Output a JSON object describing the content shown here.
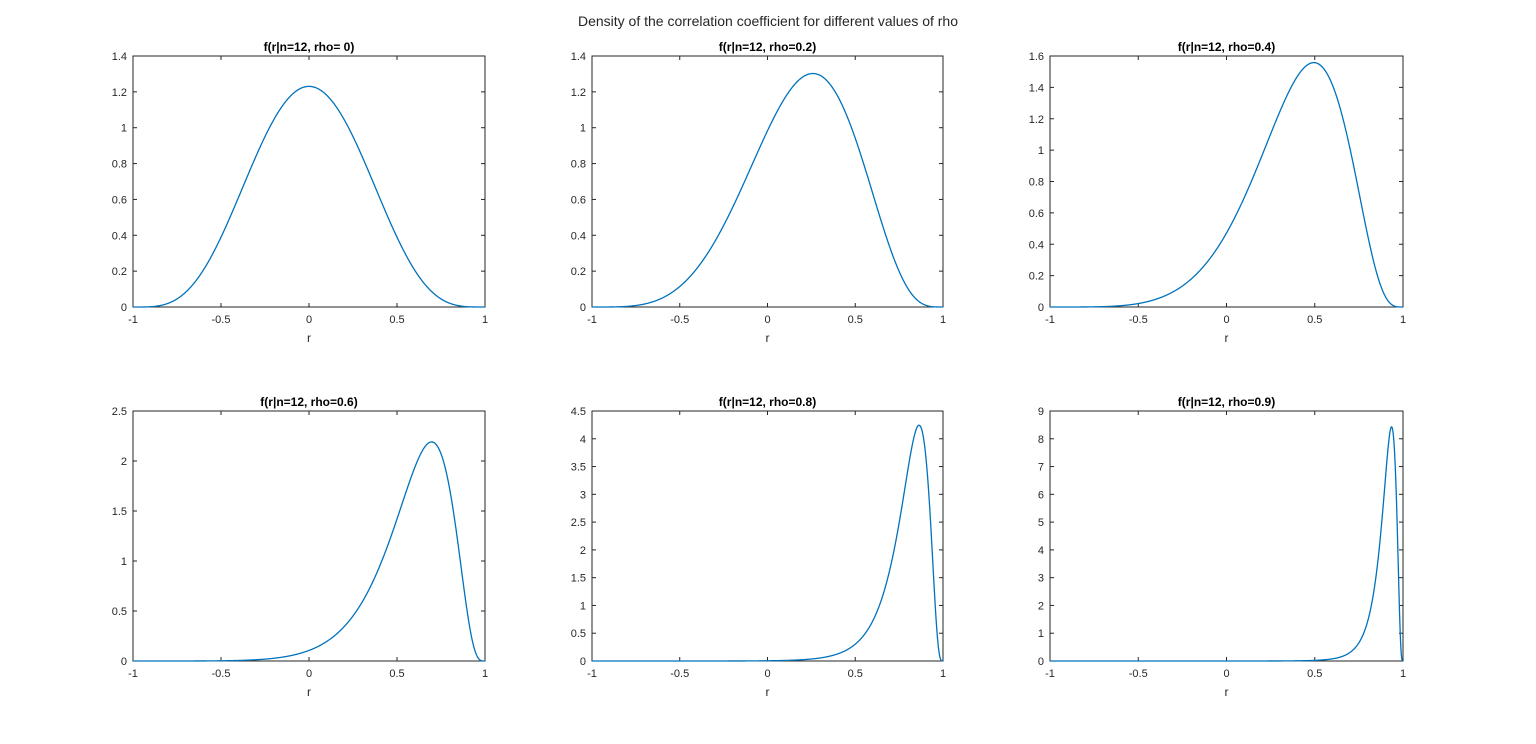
{
  "figure_title": "Density of the correlation coefficient for different values of rho",
  "colors": {
    "curve": "#0072BD",
    "axes": "#262626",
    "background": "#ffffff"
  },
  "chart_data": [
    {
      "type": "line",
      "title": "f(r|n=12, rho=  0)",
      "xlabel": "r",
      "ylabel": "",
      "n": 12,
      "rho": 0,
      "xlim": [
        -1,
        1
      ],
      "ylim": [
        0,
        1.4
      ],
      "xticks": [
        "-1",
        "-0.5",
        "0",
        "0.5",
        "1"
      ],
      "yticks": [
        "0",
        "0.2",
        "0.4",
        "0.6",
        "0.8",
        "1",
        "1.2",
        "1.4"
      ],
      "peak": {
        "x": 0,
        "y": 1.23
      },
      "grid": false
    },
    {
      "type": "line",
      "title": "f(r|n=12, rho=0.2)",
      "xlabel": "r",
      "ylabel": "",
      "n": 12,
      "rho": 0.2,
      "xlim": [
        -1,
        1
      ],
      "ylim": [
        0,
        1.4
      ],
      "xticks": [
        "-1",
        "-0.5",
        "0",
        "0.5",
        "1"
      ],
      "yticks": [
        "0",
        "0.2",
        "0.4",
        "0.6",
        "0.8",
        "1",
        "1.2",
        "1.4"
      ],
      "peak": {
        "x": 0.25,
        "y": 1.3
      },
      "grid": false
    },
    {
      "type": "line",
      "title": "f(r|n=12, rho=0.4)",
      "xlabel": "r",
      "ylabel": "",
      "n": 12,
      "rho": 0.4,
      "xlim": [
        -1,
        1
      ],
      "ylim": [
        0,
        1.6
      ],
      "xticks": [
        "-1",
        "-0.5",
        "0",
        "0.5",
        "1"
      ],
      "yticks": [
        "0",
        "0.2",
        "0.4",
        "0.6",
        "0.8",
        "1",
        "1.2",
        "1.4",
        "1.6"
      ],
      "peak": {
        "x": 0.49,
        "y": 1.56
      },
      "grid": false
    },
    {
      "type": "line",
      "title": "f(r|n=12, rho=0.6)",
      "xlabel": "r",
      "ylabel": "",
      "n": 12,
      "rho": 0.6,
      "xlim": [
        -1,
        1
      ],
      "ylim": [
        0,
        2.5
      ],
      "xticks": [
        "-1",
        "-0.5",
        "0",
        "0.5",
        "1"
      ],
      "yticks": [
        "0",
        "0.5",
        "1",
        "1.5",
        "2",
        "2.5"
      ],
      "peak": {
        "x": 0.7,
        "y": 2.19
      },
      "grid": false
    },
    {
      "type": "line",
      "title": "f(r|n=12, rho=0.8)",
      "xlabel": "r",
      "ylabel": "",
      "n": 12,
      "rho": 0.8,
      "xlim": [
        -1,
        1
      ],
      "ylim": [
        0,
        4.5
      ],
      "xticks": [
        "-1",
        "-0.5",
        "0",
        "0.5",
        "1"
      ],
      "yticks": [
        "0",
        "0.5",
        "1",
        "1.5",
        "2",
        "2.5",
        "3",
        "3.5",
        "4",
        "4.5"
      ],
      "peak": {
        "x": 0.86,
        "y": 4.24
      },
      "grid": false
    },
    {
      "type": "line",
      "title": "f(r|n=12, rho=0.9)",
      "xlabel": "r",
      "ylabel": "",
      "n": 12,
      "rho": 0.9,
      "xlim": [
        -1,
        1
      ],
      "ylim": [
        0,
        9
      ],
      "xticks": [
        "-1",
        "-0.5",
        "0",
        "0.5",
        "1"
      ],
      "yticks": [
        "0",
        "1",
        "2",
        "3",
        "4",
        "5",
        "6",
        "7",
        "8",
        "9"
      ],
      "peak": {
        "x": 0.93,
        "y": 8.38
      },
      "grid": false
    }
  ]
}
